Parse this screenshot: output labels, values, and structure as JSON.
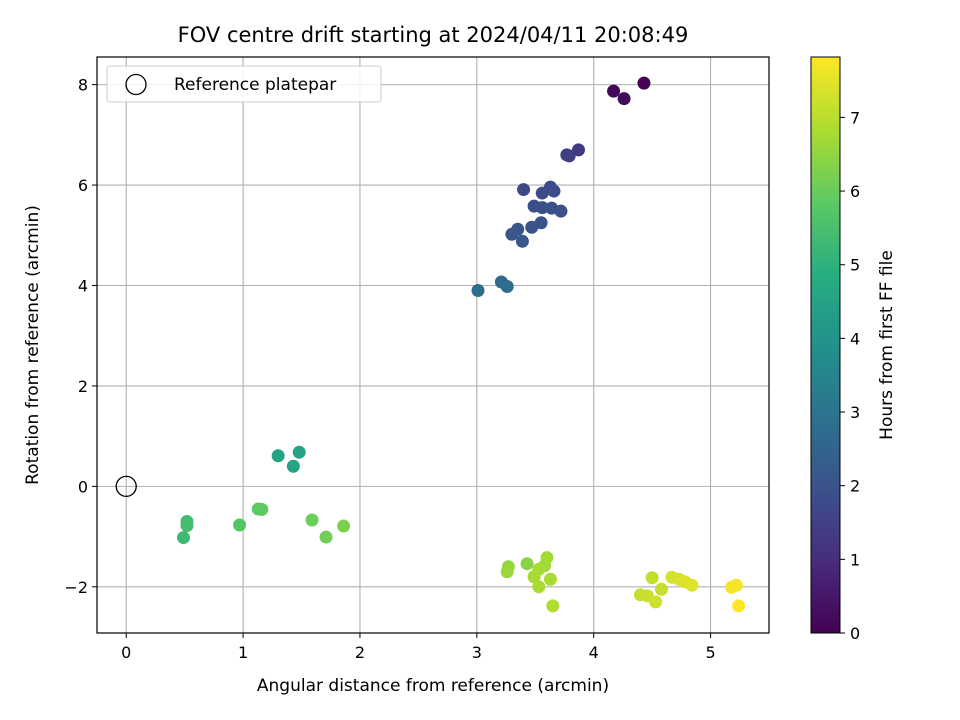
{
  "chart_data": {
    "type": "scatter",
    "title": "FOV centre drift starting at 2024/04/11 20:08:49",
    "xlabel": "Angular distance from reference (arcmin)",
    "ylabel": "Rotation from reference (arcmin)",
    "xlim": [
      -0.25,
      5.5
    ],
    "ylim": [
      -2.92,
      8.55
    ],
    "xticks": [
      0,
      1,
      2,
      3,
      4,
      5
    ],
    "yticks": [
      -2,
      0,
      2,
      4,
      6,
      8
    ],
    "grid": true,
    "legend": {
      "position": "top-left",
      "entries": [
        {
          "label": "Reference platepar",
          "marker": "open-circle"
        }
      ]
    },
    "reference_point": {
      "x": 0,
      "y": 0
    },
    "colorbar": {
      "label": "Hours from first FF file",
      "colormap": "viridis",
      "range": [
        0,
        7.82
      ],
      "ticks": [
        0,
        1,
        2,
        3,
        4,
        5,
        6,
        7
      ]
    },
    "points": [
      {
        "x": 4.43,
        "y": 8.03,
        "c": 0.05
      },
      {
        "x": 4.17,
        "y": 7.87,
        "c": 0.15
      },
      {
        "x": 4.26,
        "y": 7.72,
        "c": 0.25
      },
      {
        "x": 3.87,
        "y": 6.7,
        "c": 1.35
      },
      {
        "x": 3.79,
        "y": 6.58,
        "c": 1.4
      },
      {
        "x": 3.77,
        "y": 6.6,
        "c": 1.45
      },
      {
        "x": 3.4,
        "y": 5.91,
        "c": 1.75
      },
      {
        "x": 3.63,
        "y": 5.96,
        "c": 1.75
      },
      {
        "x": 3.66,
        "y": 5.88,
        "c": 1.8
      },
      {
        "x": 3.56,
        "y": 5.84,
        "c": 1.8
      },
      {
        "x": 3.49,
        "y": 5.58,
        "c": 1.85
      },
      {
        "x": 3.56,
        "y": 5.55,
        "c": 1.85
      },
      {
        "x": 3.64,
        "y": 5.54,
        "c": 1.9
      },
      {
        "x": 3.72,
        "y": 5.48,
        "c": 1.9
      },
      {
        "x": 3.55,
        "y": 5.25,
        "c": 1.95
      },
      {
        "x": 3.47,
        "y": 5.16,
        "c": 2.0
      },
      {
        "x": 3.35,
        "y": 5.12,
        "c": 2.05
      },
      {
        "x": 3.3,
        "y": 5.02,
        "c": 2.1
      },
      {
        "x": 3.39,
        "y": 4.88,
        "c": 2.15
      },
      {
        "x": 3.21,
        "y": 4.07,
        "c": 2.7
      },
      {
        "x": 3.26,
        "y": 3.98,
        "c": 2.75
      },
      {
        "x": 3.01,
        "y": 3.9,
        "c": 2.85
      },
      {
        "x": 1.3,
        "y": 0.61,
        "c": 4.5
      },
      {
        "x": 1.48,
        "y": 0.68,
        "c": 4.5
      },
      {
        "x": 1.43,
        "y": 0.4,
        "c": 4.55
      },
      {
        "x": 0.52,
        "y": -0.7,
        "c": 5.4
      },
      {
        "x": 0.52,
        "y": -0.78,
        "c": 5.45
      },
      {
        "x": 0.49,
        "y": -1.02,
        "c": 5.3
      },
      {
        "x": 0.97,
        "y": -0.77,
        "c": 5.7
      },
      {
        "x": 1.13,
        "y": -0.45,
        "c": 5.85
      },
      {
        "x": 1.16,
        "y": -0.46,
        "c": 5.85
      },
      {
        "x": 1.59,
        "y": -0.67,
        "c": 6.05
      },
      {
        "x": 1.71,
        "y": -1.01,
        "c": 6.1
      },
      {
        "x": 1.86,
        "y": -0.79,
        "c": 6.25
      },
      {
        "x": 3.43,
        "y": -1.54,
        "c": 6.4
      },
      {
        "x": 3.27,
        "y": -1.6,
        "c": 6.55
      },
      {
        "x": 3.26,
        "y": -1.7,
        "c": 6.6
      },
      {
        "x": 3.6,
        "y": -1.42,
        "c": 6.7
      },
      {
        "x": 3.58,
        "y": -1.58,
        "c": 6.7
      },
      {
        "x": 3.53,
        "y": -1.65,
        "c": 6.75
      },
      {
        "x": 3.49,
        "y": -1.8,
        "c": 6.75
      },
      {
        "x": 3.63,
        "y": -1.85,
        "c": 6.8
      },
      {
        "x": 3.53,
        "y": -2.0,
        "c": 6.8
      },
      {
        "x": 3.65,
        "y": -2.38,
        "c": 6.85
      },
      {
        "x": 4.5,
        "y": -1.82,
        "c": 7.1
      },
      {
        "x": 4.67,
        "y": -1.81,
        "c": 7.3
      },
      {
        "x": 4.73,
        "y": -1.85,
        "c": 7.35
      },
      {
        "x": 4.78,
        "y": -1.9,
        "c": 7.4
      },
      {
        "x": 4.84,
        "y": -1.97,
        "c": 7.45
      },
      {
        "x": 4.58,
        "y": -2.05,
        "c": 7.15
      },
      {
        "x": 4.4,
        "y": -2.16,
        "c": 7.15
      },
      {
        "x": 4.46,
        "y": -2.18,
        "c": 7.2
      },
      {
        "x": 4.53,
        "y": -2.3,
        "c": 7.25
      },
      {
        "x": 5.18,
        "y": -2.01,
        "c": 7.7
      },
      {
        "x": 5.22,
        "y": -1.97,
        "c": 7.75
      },
      {
        "x": 5.24,
        "y": -2.38,
        "c": 7.8
      }
    ]
  }
}
